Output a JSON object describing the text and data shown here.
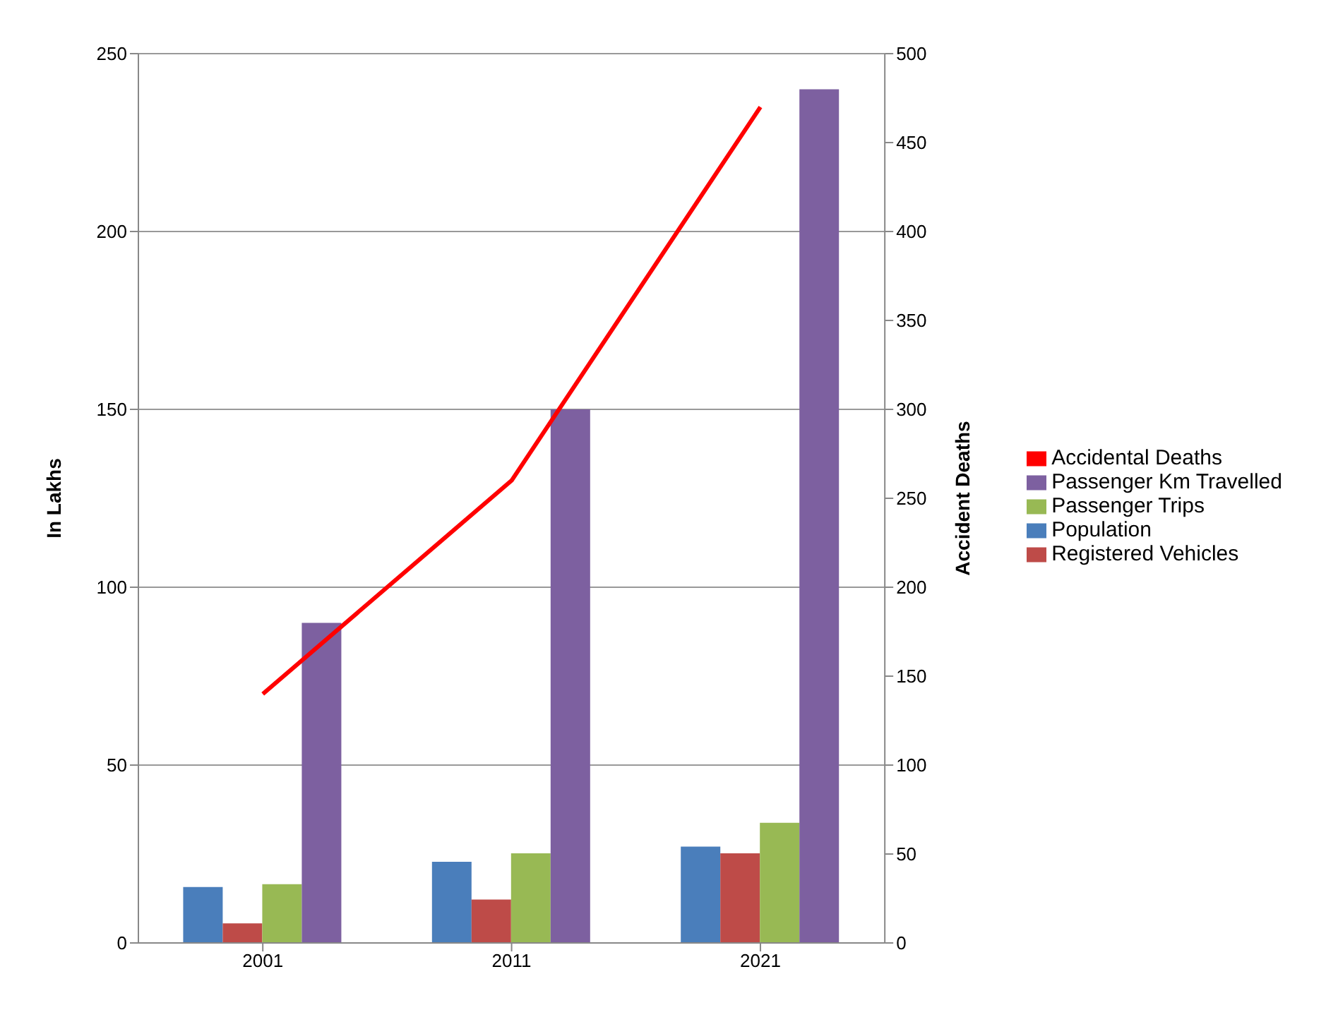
{
  "chart_data": {
    "type": "bar",
    "categories": [
      "2001",
      "2011",
      "2021"
    ],
    "series": [
      {
        "name": "Population",
        "color": "#4a7ebb",
        "values": [
          15.7,
          22.8,
          27.1
        ]
      },
      {
        "name": "Registered Vehicles",
        "color": "#be4b48",
        "values": [
          5.5,
          12.2,
          25.2
        ]
      },
      {
        "name": "Passenger Trips",
        "color": "#98b954",
        "values": [
          16.5,
          25.2,
          33.8
        ]
      },
      {
        "name": "Passenger Km Travelled",
        "color": "#7d60a0",
        "values": [
          90,
          150,
          240
        ]
      },
      {
        "name": "Accidental Deaths",
        "type": "line",
        "axis": "y2",
        "color": "#ff0000",
        "values": [
          140,
          260,
          470
        ]
      }
    ],
    "ylabel": "In Lakhs",
    "y2label": "Accident Deaths",
    "ylim": [
      0,
      250
    ],
    "yticks": [
      0,
      50,
      100,
      150,
      200,
      250
    ],
    "y2lim": [
      0,
      500
    ],
    "y2ticks": [
      0,
      50,
      100,
      150,
      200,
      250,
      300,
      350,
      400,
      450,
      500
    ],
    "grid": "y",
    "legend": "right",
    "marker": "none"
  }
}
